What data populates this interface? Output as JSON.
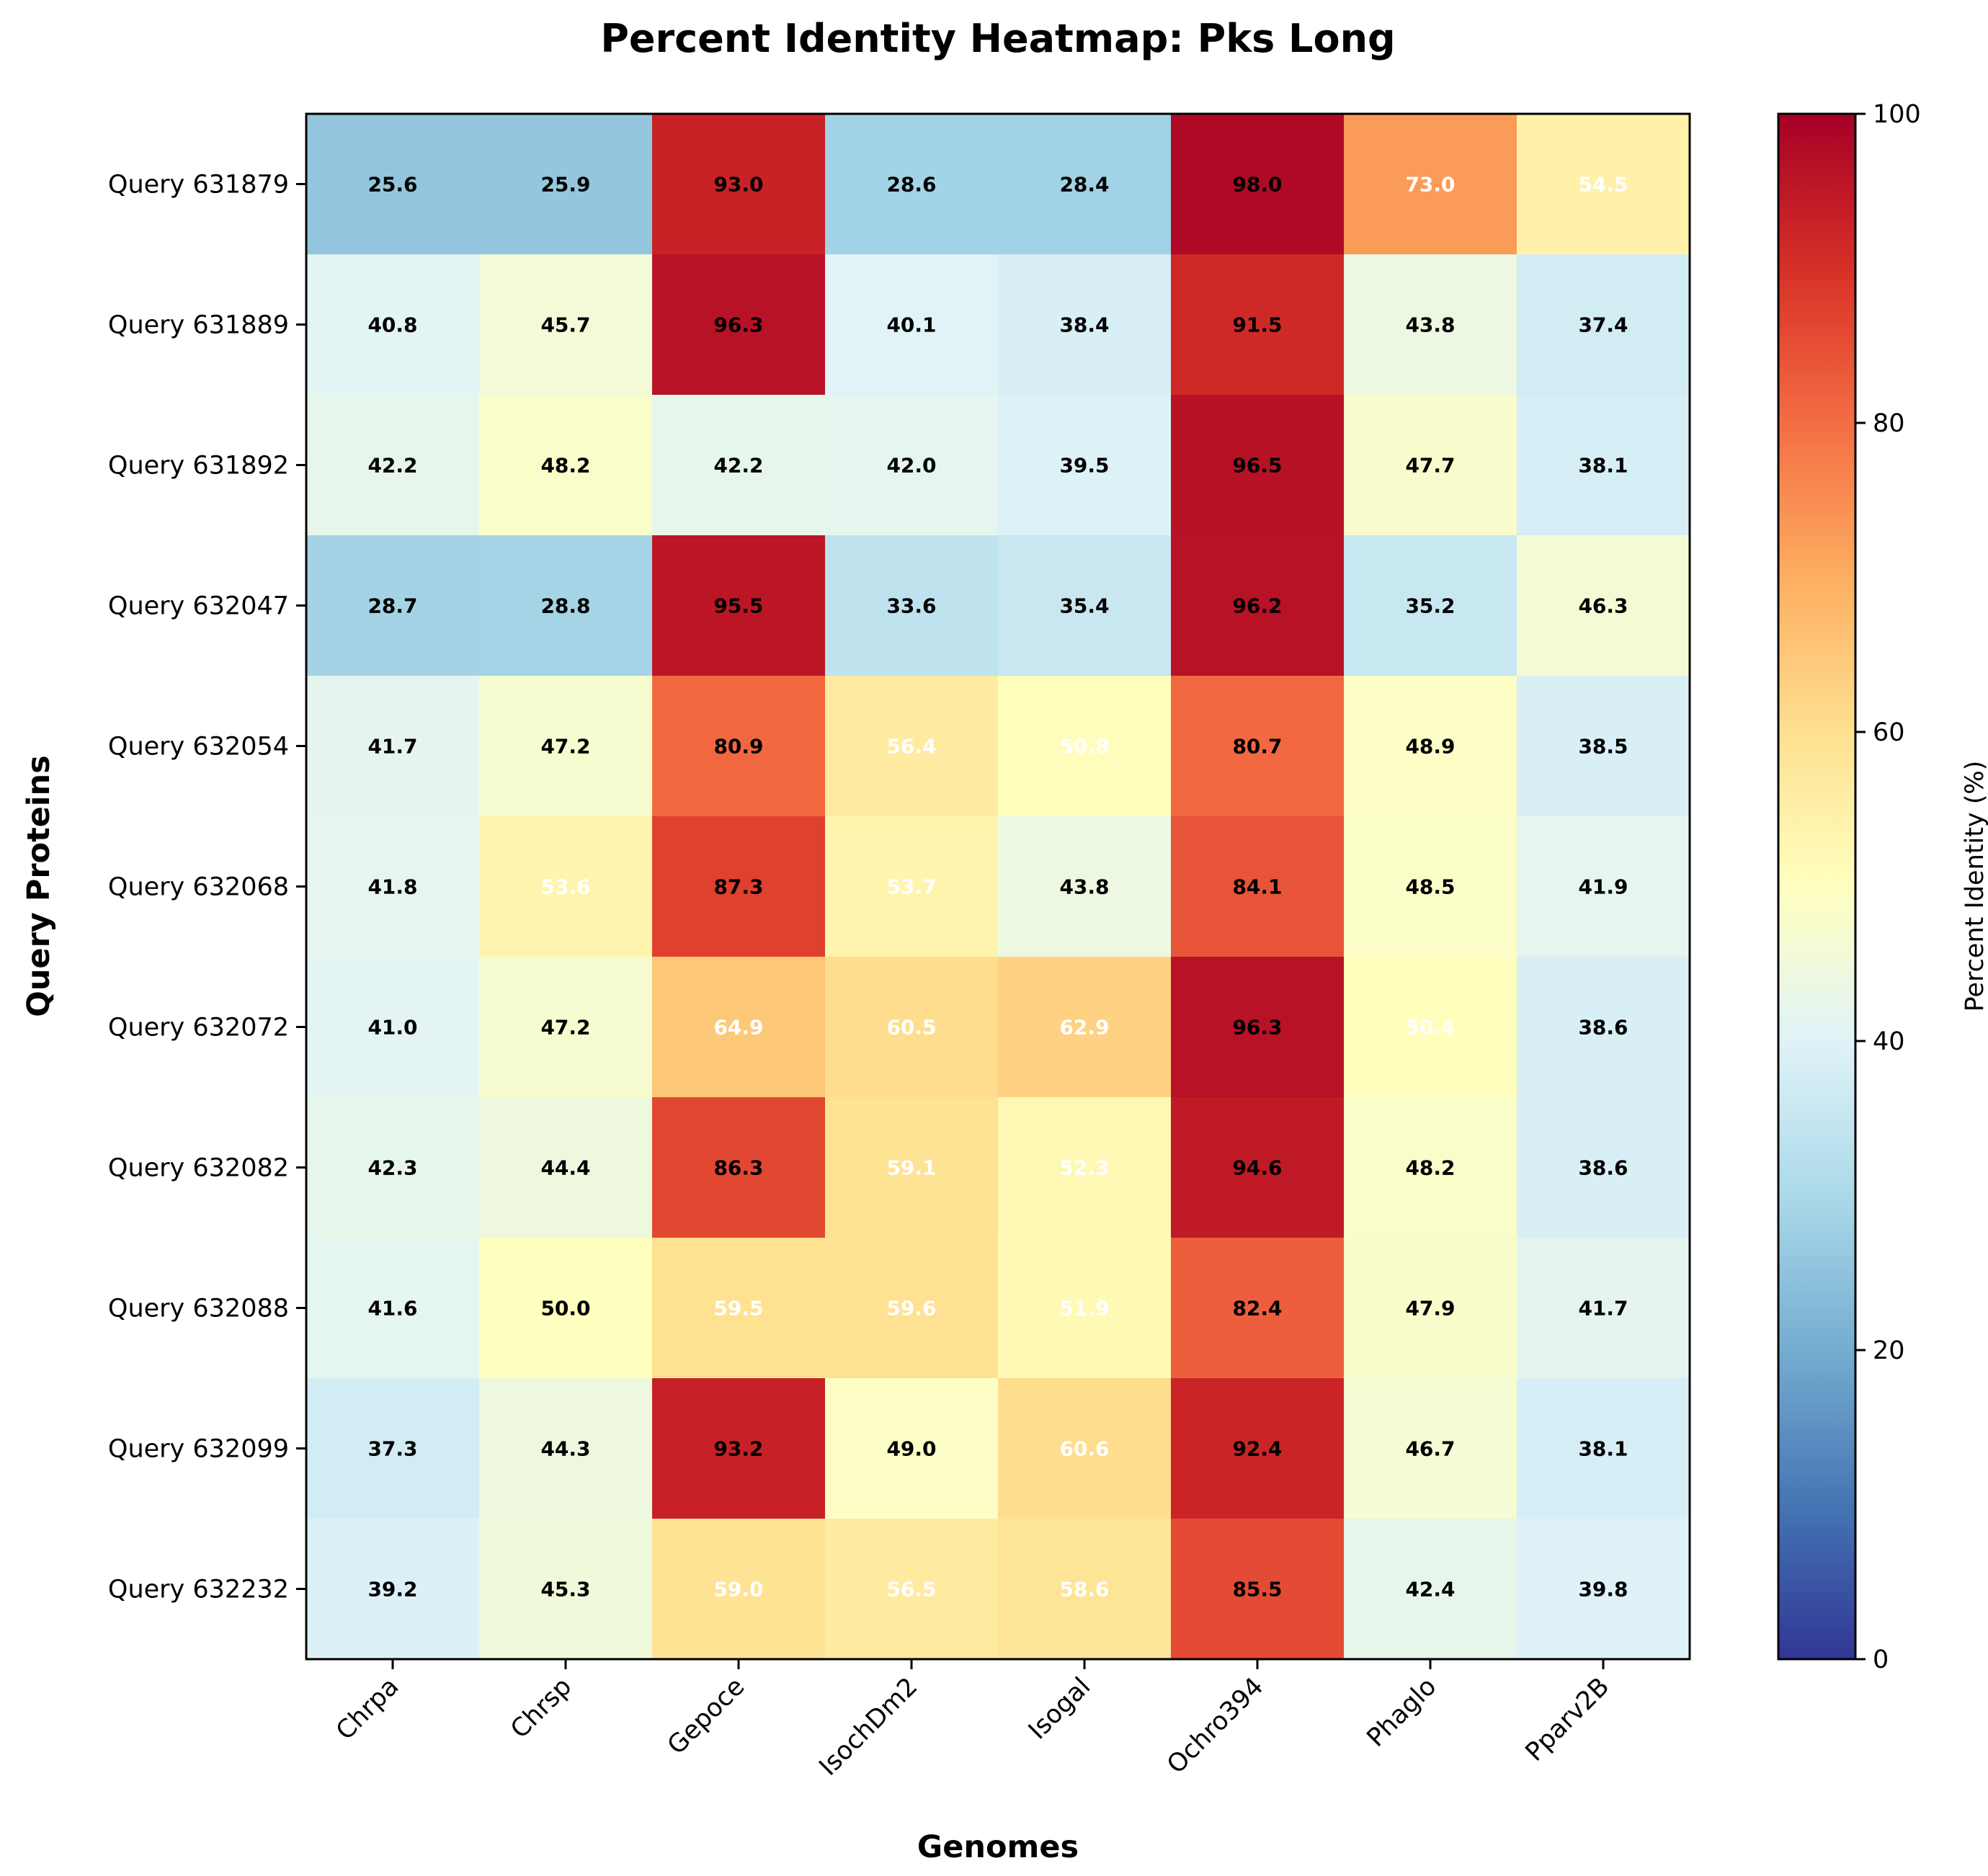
{
  "chart_data": {
    "type": "heatmap",
    "title": "Percent Identity Heatmap: Pks Long",
    "xlabel": "Genomes",
    "ylabel": "Query Proteins",
    "x_categories": [
      "Chrpa",
      "Chrsp",
      "Gepoce",
      "IsochDm2",
      "Isogal",
      "Ochro394",
      "Phaglo",
      "Pparv2B"
    ],
    "y_categories": [
      "Query 631879",
      "Query 631889",
      "Query 631892",
      "Query 632047",
      "Query 632054",
      "Query 632068",
      "Query 632072",
      "Query 632082",
      "Query 632088",
      "Query 632099",
      "Query 632232"
    ],
    "values": [
      [
        25.6,
        25.9,
        93.0,
        28.6,
        28.4,
        98.0,
        73.0,
        54.5
      ],
      [
        40.8,
        45.7,
        96.3,
        40.1,
        38.4,
        91.5,
        43.8,
        37.4
      ],
      [
        42.2,
        48.2,
        42.2,
        42.0,
        39.5,
        96.5,
        47.7,
        38.1
      ],
      [
        28.7,
        28.8,
        95.5,
        33.6,
        35.4,
        96.2,
        35.2,
        46.3
      ],
      [
        41.7,
        47.2,
        80.9,
        56.4,
        50.8,
        80.7,
        48.9,
        38.5
      ],
      [
        41.8,
        53.6,
        87.3,
        53.7,
        43.8,
        84.1,
        48.5,
        41.9
      ],
      [
        41.0,
        47.2,
        64.9,
        60.5,
        62.9,
        96.3,
        50.4,
        38.6
      ],
      [
        42.3,
        44.4,
        86.3,
        59.1,
        52.3,
        94.6,
        48.2,
        38.6
      ],
      [
        41.6,
        50.0,
        59.5,
        59.6,
        51.9,
        82.4,
        47.9,
        41.7
      ],
      [
        37.3,
        44.3,
        93.2,
        49.0,
        60.6,
        92.4,
        46.7,
        38.1
      ],
      [
        39.2,
        45.3,
        59.0,
        56.5,
        58.6,
        85.5,
        42.4,
        39.8
      ]
    ],
    "value_labels": [
      [
        "25.6",
        "25.9",
        "93.0",
        "28.6",
        "28.4",
        "98.0",
        "73.0",
        "54.5"
      ],
      [
        "40.8",
        "45.7",
        "96.3",
        "40.1",
        "38.4",
        "91.5",
        "43.8",
        "37.4"
      ],
      [
        "42.2",
        "48.2",
        "42.2",
        "42.0",
        "39.5",
        "96.5",
        "47.7",
        "38.1"
      ],
      [
        "28.7",
        "28.8",
        "95.5",
        "33.6",
        "35.4",
        "96.2",
        "35.2",
        "46.3"
      ],
      [
        "41.7",
        "47.2",
        "80.9",
        "56.4",
        "50.8",
        "80.7",
        "48.9",
        "38.5"
      ],
      [
        "41.8",
        "53.6",
        "87.3",
        "53.7",
        "43.8",
        "84.1",
        "48.5",
        "41.9"
      ],
      [
        "41.0",
        "47.2",
        "64.9",
        "60.5",
        "62.9",
        "96.3",
        "50.4",
        "38.6"
      ],
      [
        "42.3",
        "44.4",
        "86.3",
        "59.1",
        "52.3",
        "94.6",
        "48.2",
        "38.6"
      ],
      [
        "41.6",
        "50.0",
        "59.5",
        "59.6",
        "51.9",
        "82.4",
        "47.9",
        "41.7"
      ],
      [
        "37.3",
        "44.3",
        "93.2",
        "49.0",
        "60.6",
        "92.4",
        "46.7",
        "38.1"
      ],
      [
        "39.2",
        "45.3",
        "59.0",
        "56.5",
        "58.6",
        "85.5",
        "42.4",
        "39.8"
      ]
    ],
    "colorbar": {
      "label": "Percent Identity (%)",
      "range": [
        0,
        100
      ],
      "ticks": [
        "0",
        "20",
        "40",
        "60",
        "80",
        "100"
      ],
      "colormap": "RdYlBu_r",
      "stops": [
        "#313695",
        "#4575b4",
        "#74add1",
        "#abd9e9",
        "#e0f3f8",
        "#ffffbf",
        "#fee090",
        "#fdae61",
        "#f46d43",
        "#d73027",
        "#a50026"
      ]
    },
    "label_colors": {
      "dark": "#000000",
      "light": "#ffffff"
    },
    "grid": false
  }
}
